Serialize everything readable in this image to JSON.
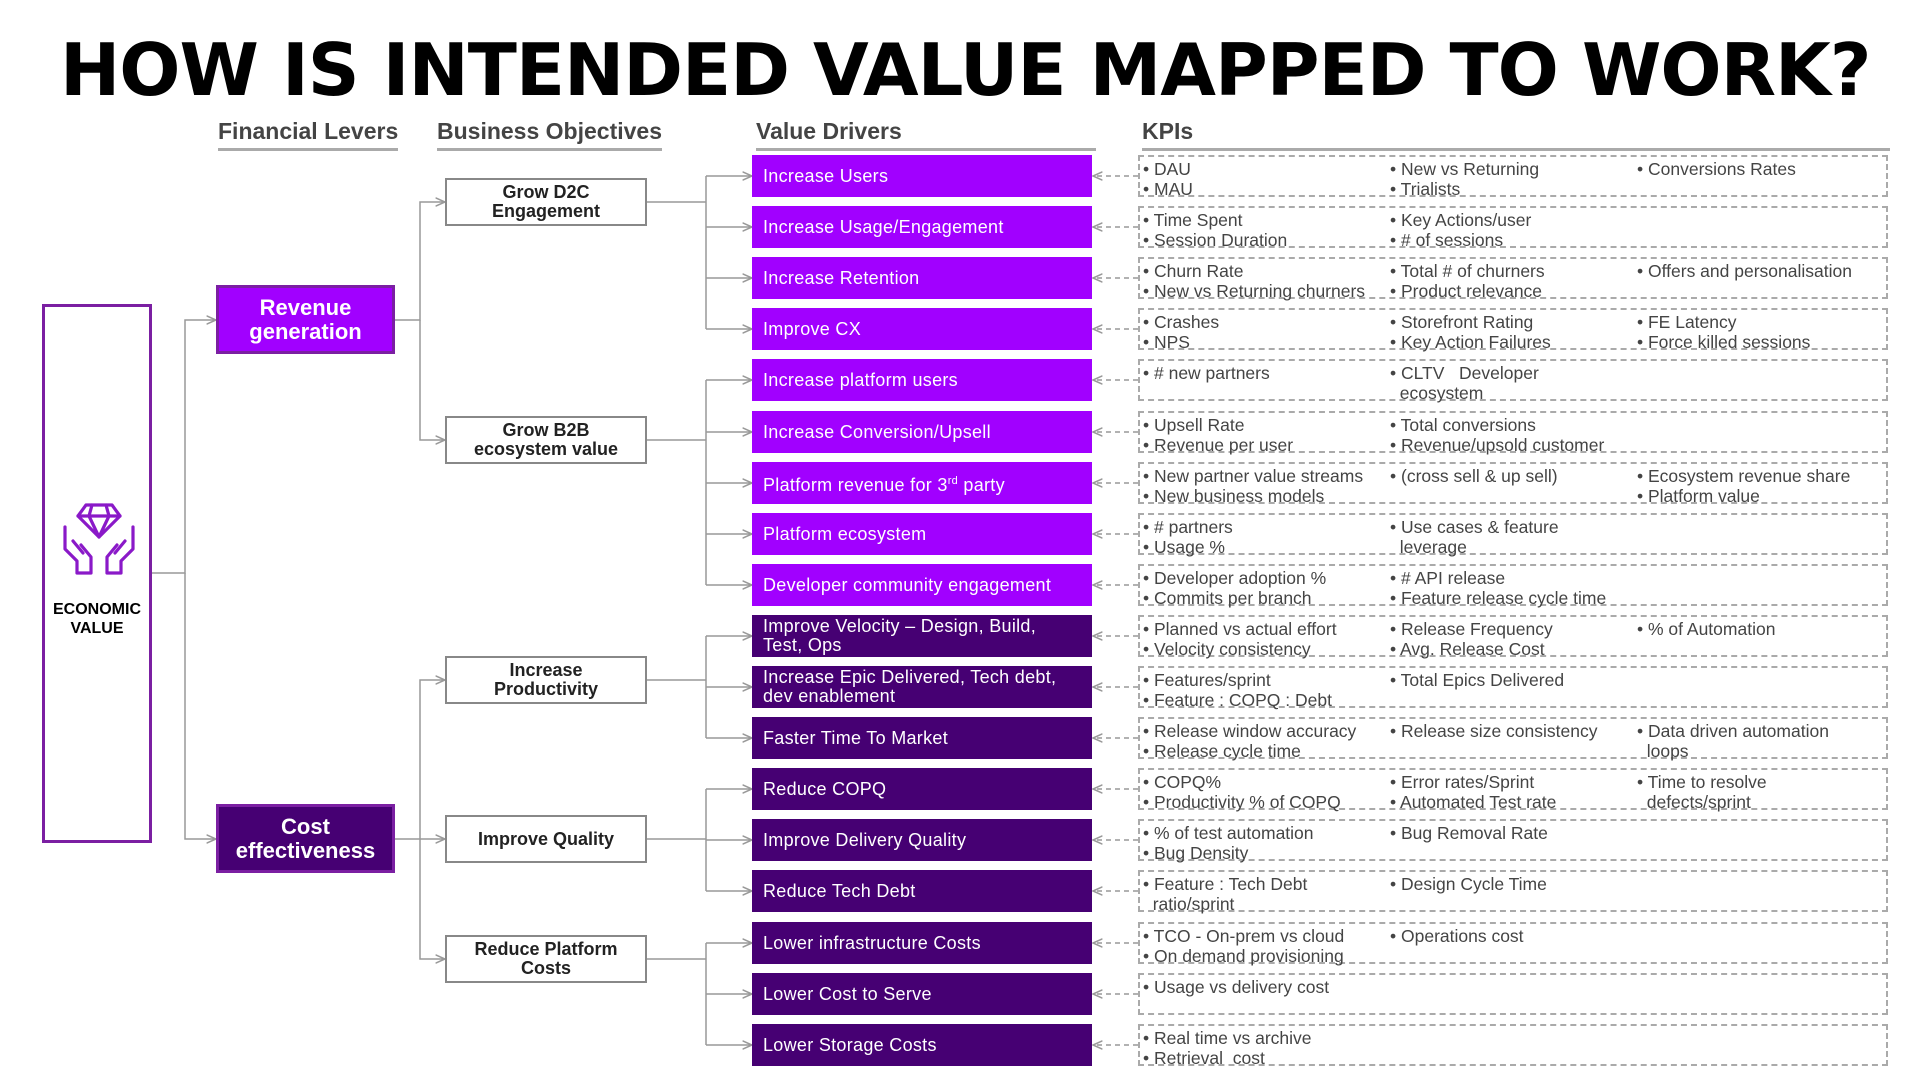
{
  "title": "HOW IS INTENDED VALUE MAPPED TO WORK?",
  "column_headers": {
    "financial_levers": "Financial Levers",
    "business_objectives": "Business Objectives",
    "value_drivers": "Value Drivers",
    "kpis": "KPIs"
  },
  "colors": {
    "bright_purple": "#a100ff",
    "dark_purple": "#460073",
    "border_purple": "#7b1fa2",
    "icon_purple": "#8a19c8",
    "connector_gray": "#999999"
  },
  "economic_value": {
    "label_line1": "ECONOMIC",
    "label_line2": "VALUE",
    "icon": "diamond-in-hands-icon"
  },
  "levers": [
    {
      "line1": "Revenue",
      "line2": "generation"
    },
    {
      "line1": "Cost",
      "line2": "effectiveness"
    }
  ],
  "objectives": [
    {
      "line1": "Grow D2C",
      "line2": "Engagement"
    },
    {
      "line1": "Grow B2B",
      "line2": "ecosystem value"
    },
    {
      "line1": "Increase",
      "line2": "Productivity"
    },
    {
      "line1": "Improve Quality",
      "line2": ""
    },
    {
      "line1": "Reduce Platform",
      "line2": "Costs"
    }
  ],
  "drivers": [
    {
      "line1": "Increase Users",
      "line2": ""
    },
    {
      "line1": "Increase Usage/Engagement",
      "line2": ""
    },
    {
      "line1": "Increase Retention",
      "line2": ""
    },
    {
      "line1": "Improve CX",
      "line2": ""
    },
    {
      "line1": "Increase platform users",
      "line2": ""
    },
    {
      "line1": "Increase Conversion/Upsell",
      "line2": ""
    },
    {
      "line1": "Platform revenue for 3",
      "sup": "rd",
      "line1_tail": " party",
      "line2": ""
    },
    {
      "line1": "Platform  ecosystem",
      "line2": ""
    },
    {
      "line1": "Developer community  engagement",
      "line2": ""
    },
    {
      "line1": "Improve Velocity – Design, Build,",
      "line2": "Test, Ops"
    },
    {
      "line1": "Increase Epic Delivered, Tech debt,",
      "line2": "dev enablement"
    },
    {
      "line1": "Faster Time To Market",
      "line2": ""
    },
    {
      "line1": "Reduce COPQ",
      "line2": ""
    },
    {
      "line1": "Improve Delivery Quality",
      "line2": ""
    },
    {
      "line1": "Reduce Tech Debt",
      "line2": ""
    },
    {
      "line1": "Lower infrastructure Costs",
      "line2": ""
    },
    {
      "line1": "Lower Cost to Serve",
      "line2": ""
    },
    {
      "line1": "Lower Storage Costs",
      "line2": ""
    }
  ],
  "kpis": [
    [
      [
        "• DAU",
        "• MAU"
      ],
      [
        "• New vs Returning",
        "• Trialists"
      ],
      [
        "• Conversions Rates",
        ""
      ]
    ],
    [
      [
        "• Time Spent",
        "• Session Duration"
      ],
      [
        "• Key Actions/user",
        "• # of sessions"
      ],
      [
        "",
        ""
      ]
    ],
    [
      [
        "• Churn Rate",
        "• New vs Returning churners"
      ],
      [
        "• Total # of churners",
        "• Product relevance"
      ],
      [
        "• Offers and personalisation",
        ""
      ]
    ],
    [
      [
        "• Crashes",
        "• NPS"
      ],
      [
        "• Storefront Rating",
        "• Key Action Failures"
      ],
      [
        "• FE Latency",
        "• Force killed sessions"
      ]
    ],
    [
      [
        "• # new partners",
        ""
      ],
      [
        "• CLTV   Developer",
        "  ecosystem"
      ],
      [
        "",
        ""
      ]
    ],
    [
      [
        "• Upsell Rate",
        "• Revenue per user"
      ],
      [
        "• Total conversions",
        "• Revenue/upsold customer"
      ],
      [
        "",
        ""
      ]
    ],
    [
      [
        "• New partner value streams",
        "• New business models"
      ],
      [
        "• (cross sell & up sell)",
        ""
      ],
      [
        "• Ecosystem revenue share",
        "• Platform value"
      ]
    ],
    [
      [
        "• # partners",
        "• Usage %"
      ],
      [
        "• Use cases & feature",
        "  leverage"
      ],
      [
        "",
        ""
      ]
    ],
    [
      [
        "• Developer adoption %",
        "• Commits per branch"
      ],
      [
        "• # API release",
        "• Feature release cycle time"
      ],
      [
        "",
        ""
      ]
    ],
    [
      [
        "• Planned vs actual effort",
        "• Velocity consistency"
      ],
      [
        "• Release Frequency",
        "• Avg. Release Cost"
      ],
      [
        "• % of Automation",
        ""
      ]
    ],
    [
      [
        "• Features/sprint",
        "• Feature : COPQ : Debt"
      ],
      [
        "• Total Epics Delivered",
        ""
      ],
      [
        "",
        ""
      ]
    ],
    [
      [
        "• Release window accuracy",
        "• Release cycle time"
      ],
      [
        "• Release size consistency",
        ""
      ],
      [
        "• Data driven automation",
        "  loops"
      ]
    ],
    [
      [
        "• COPQ%",
        "• Productivity % of COPQ"
      ],
      [
        "• Error rates/Sprint",
        "• Automated Test rate"
      ],
      [
        "• Time to resolve",
        "  defects/sprint"
      ]
    ],
    [
      [
        "• % of test automation",
        "• Bug Density"
      ],
      [
        "• Bug Removal Rate",
        ""
      ],
      [
        "",
        ""
      ]
    ],
    [
      [
        "• Feature : Tech Debt",
        "  ratio/sprint"
      ],
      [
        "• Design Cycle Time",
        ""
      ],
      [
        "",
        ""
      ]
    ],
    [
      [
        "• TCO - On-prem vs cloud",
        "• On demand provisioning"
      ],
      [
        "• Operations cost",
        ""
      ],
      [
        "",
        ""
      ]
    ],
    [
      [
        "• Usage vs delivery cost",
        ""
      ],
      [
        "",
        ""
      ],
      [
        "",
        ""
      ]
    ],
    [
      [
        "• Real time vs archive",
        "• Retrieval  cost"
      ],
      [
        "",
        ""
      ],
      [
        "",
        ""
      ]
    ]
  ]
}
